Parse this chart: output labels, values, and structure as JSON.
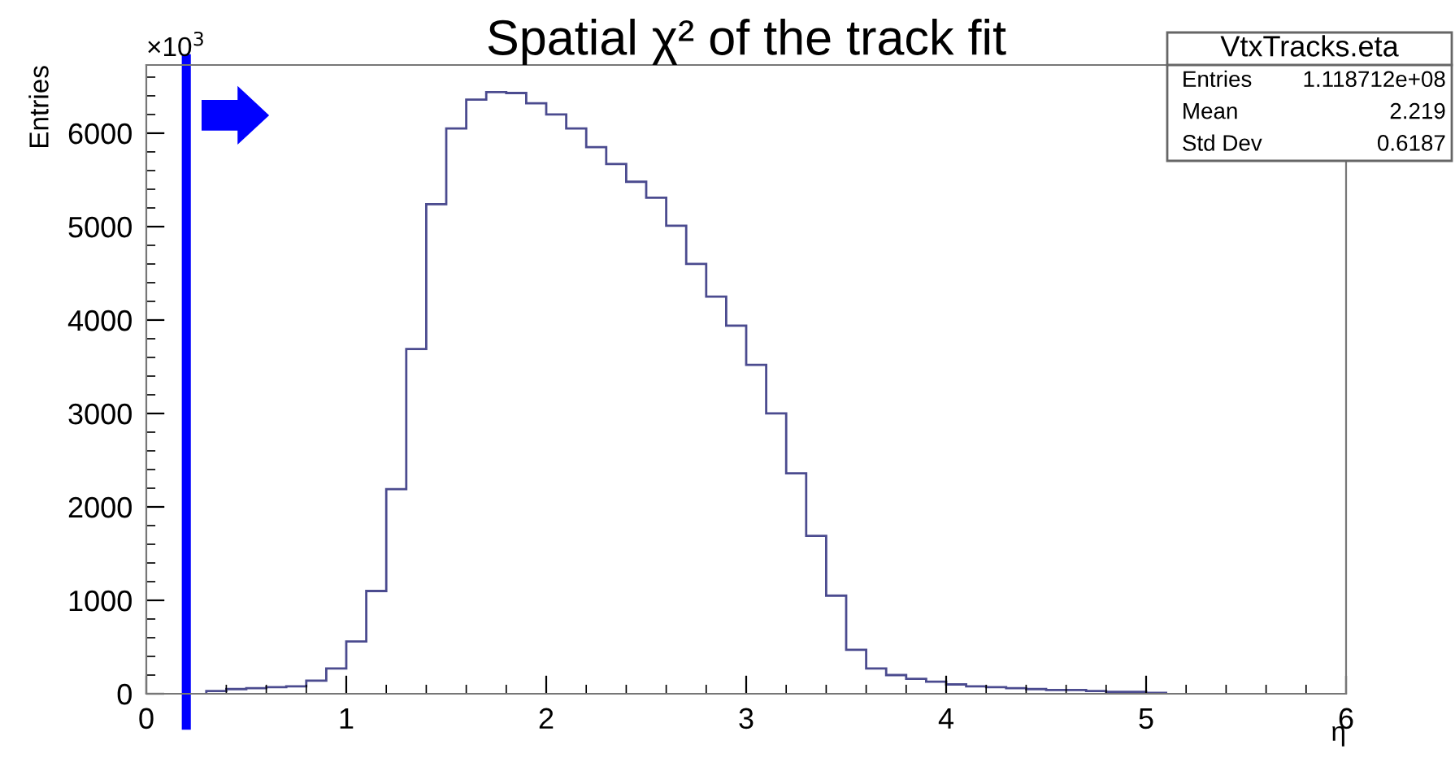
{
  "chart_data": {
    "type": "histogram",
    "title": "Spatial χ² of the track fit",
    "xlabel": "η",
    "ylabel": "Entries",
    "bins": [
      0.3,
      0.4,
      0.5,
      0.6,
      0.7,
      0.8,
      0.9,
      1.0,
      1.1,
      1.2,
      1.3,
      1.4,
      1.5,
      1.6,
      1.7,
      1.8,
      1.9,
      2.0,
      2.1,
      2.2,
      2.3,
      2.4,
      2.5,
      2.6,
      2.7,
      2.8,
      2.9,
      3.0,
      3.1,
      3.2,
      3.3,
      3.4,
      3.5,
      3.6,
      3.7,
      3.8,
      3.9,
      4.0,
      4.1,
      4.2,
      4.3,
      4.4,
      4.5,
      4.6,
      4.7,
      4.8,
      4.9,
      5.0,
      5.1
    ],
    "values": [
      30,
      50,
      60,
      70,
      80,
      140,
      270,
      560,
      1100,
      2190,
      3690,
      5240,
      6050,
      6360,
      6440,
      6430,
      6320,
      6200,
      6050,
      5850,
      5670,
      5480,
      5310,
      5010,
      4600,
      4250,
      3940,
      3520,
      3000,
      2360,
      1690,
      1050,
      470,
      270,
      200,
      160,
      130,
      100,
      80,
      70,
      60,
      50,
      40,
      40,
      30,
      20,
      20,
      10
    ],
    "color": "#4b4b8f",
    "xlim": [
      0,
      6
    ],
    "ylim": [
      0,
      6730
    ],
    "xticks": [
      0,
      1,
      2,
      3,
      4,
      5,
      6
    ],
    "yticks": [
      0,
      1000,
      2000,
      3000,
      4000,
      5000,
      6000
    ],
    "ref_lines": [
      {
        "axis": "x",
        "value": 0.2,
        "color": "#0000ff"
      }
    ],
    "annotations": [
      "×10$^{3}$",
      "VtxTracks.eta",
      "Entries",
      "1.118712e+08",
      "Mean",
      "2.219",
      "Std Dev",
      "0.6187"
    ],
    "grid": false
  }
}
